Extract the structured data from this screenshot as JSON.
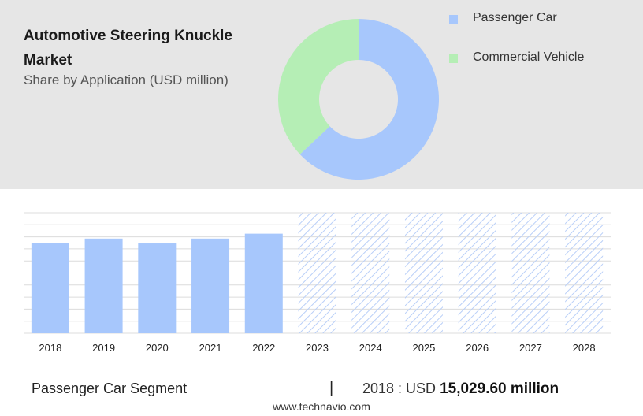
{
  "header": {
    "title": "Automotive Steering Knuckle Market",
    "subtitle": "Share by Application (USD million)"
  },
  "legend": [
    {
      "label": "Passenger Car",
      "color": "#a7c7fc"
    },
    {
      "label": "Commercial Vehicle",
      "color": "#b5eeb5"
    }
  ],
  "footer": {
    "segment": "Passenger Car Segment",
    "separator": "|",
    "year_prefix": "2018 : USD",
    "value": "15,029.60 million",
    "website": "www.technavio.com"
  },
  "chart_data": [
    {
      "type": "pie",
      "donut": true,
      "labels": [
        "Passenger Car",
        "Commercial Vehicle"
      ],
      "values": [
        63,
        37
      ],
      "colors": [
        "#a7c7fc",
        "#b5eeb5"
      ]
    },
    {
      "type": "bar",
      "categories": [
        "2018",
        "2019",
        "2020",
        "2021",
        "2022",
        "2023",
        "2024",
        "2025",
        "2026",
        "2027",
        "2028"
      ],
      "values": [
        15029.6,
        15710,
        14900,
        15710,
        16520,
        null,
        null,
        null,
        null,
        null,
        null
      ],
      "forecast_categories": [
        "2023",
        "2024",
        "2025",
        "2026",
        "2027",
        "2028"
      ],
      "ylim": [
        0,
        20000
      ],
      "grid": true,
      "colors": {
        "actual": "#a7c7fc",
        "forecast_hatch": "#b9cff8"
      }
    }
  ]
}
